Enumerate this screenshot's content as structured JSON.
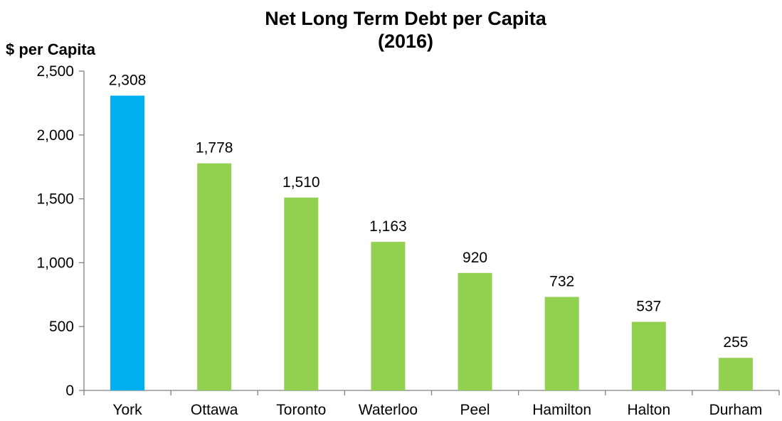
{
  "chart_data": {
    "type": "bar",
    "title_line1": "Net Long Term Debt per Capita",
    "title_line2": "(2016)",
    "ylabel": "$ per Capita",
    "xlabel": "",
    "categories": [
      "York",
      "Ottawa",
      "Toronto",
      "Waterloo",
      "Peel",
      "Hamilton",
      "Halton",
      "Durham"
    ],
    "values": [
      2308,
      1778,
      1510,
      1163,
      920,
      732,
      537,
      255
    ],
    "value_labels": [
      "2,308",
      "1,778",
      "1,510",
      "1,163",
      "920",
      "732",
      "537",
      "255"
    ],
    "bar_colors": [
      "#00B0F0",
      "#92D050",
      "#92D050",
      "#92D050",
      "#92D050",
      "#92D050",
      "#92D050",
      "#92D050"
    ],
    "ylim": [
      0,
      2500
    ],
    "yticks": [
      0,
      500,
      1000,
      1500,
      2000,
      2500
    ],
    "ytick_labels": [
      "0",
      "500",
      "1,000",
      "1,500",
      "2,000",
      "2,500"
    ],
    "grid": false,
    "legend": "none"
  }
}
